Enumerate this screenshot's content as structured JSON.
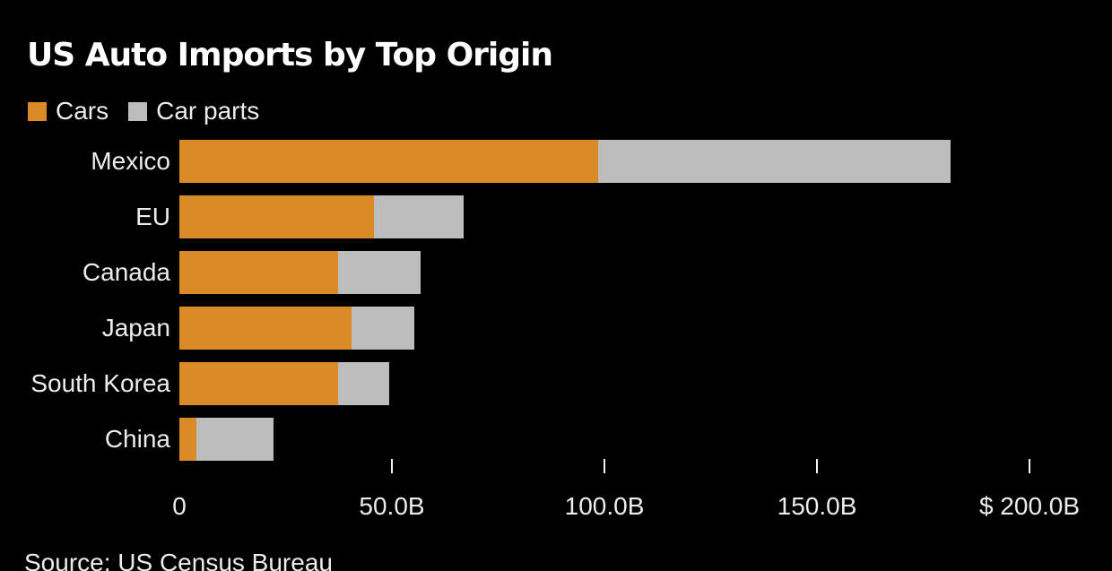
{
  "title": "US Auto Imports by Top Origin",
  "source": "Source: US Census Bureau",
  "colors": {
    "background": "#000000",
    "cars": "#db8a28",
    "car_parts": "#bdbdbd",
    "title_text": "#ffffff",
    "label_text": "#ececec"
  },
  "legend": {
    "items": [
      {
        "label": "Cars",
        "color": "#db8a28"
      },
      {
        "label": "Car parts",
        "color": "#bdbdbd"
      }
    ]
  },
  "chart_data": {
    "type": "bar",
    "orientation": "horizontal",
    "stacked": true,
    "title": "US Auto Imports by Top Origin",
    "xlabel": "",
    "ylabel": "",
    "unit": "billions of US dollars",
    "grid": false,
    "legend_position": "top-left",
    "categories": [
      "Mexico",
      "EU",
      "Canada",
      "Japan",
      "South Korea",
      "China"
    ],
    "series": [
      {
        "name": "Cars",
        "color": "#db8a28",
        "values": [
          98.5,
          45.8,
          37.3,
          40.4,
          37.3,
          3.9
        ]
      },
      {
        "name": "Car parts",
        "color": "#bdbdbd",
        "values": [
          82.9,
          21.1,
          19.5,
          14.8,
          12.1,
          18.2
        ]
      }
    ],
    "xlim": [
      0,
      219
    ],
    "x_ticks": [
      {
        "value": 0,
        "label": "0",
        "mark": false
      },
      {
        "value": 50,
        "label": "50.0B",
        "mark": true
      },
      {
        "value": 100,
        "label": "100.0B",
        "mark": true
      },
      {
        "value": 150,
        "label": "150.0B",
        "mark": true
      },
      {
        "value": 200,
        "label": "$ 200.0B",
        "mark": true
      }
    ]
  }
}
